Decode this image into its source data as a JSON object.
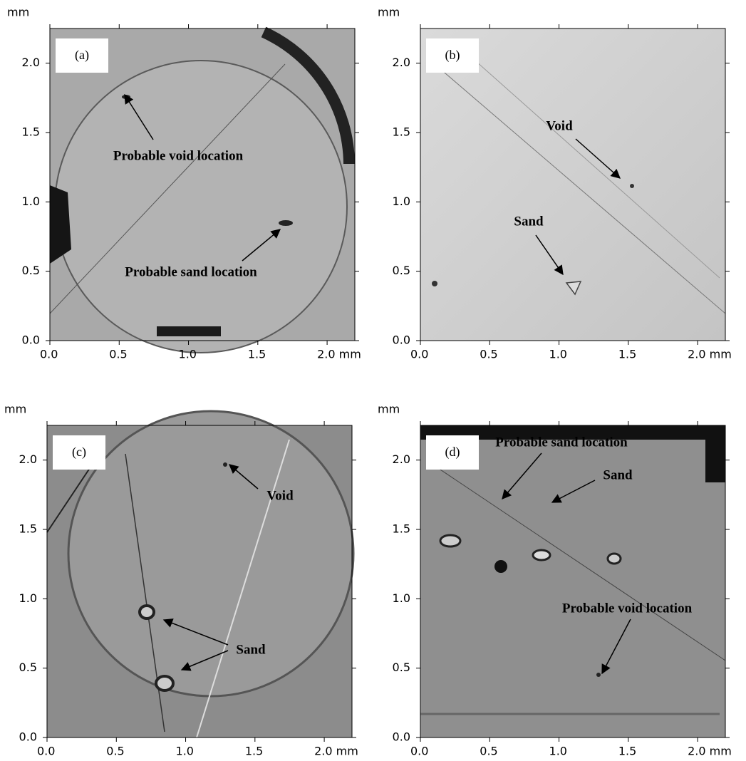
{
  "panels": [
    {
      "label": "(a)",
      "y_unit": "mm",
      "xlim": [
        0,
        2.2
      ],
      "ylim": [
        0,
        2.25
      ],
      "xticks": [
        {
          "value": 0,
          "label": "0.0"
        },
        0.5,
        {
          "value": 1,
          "label": "1.0"
        },
        1.5,
        {
          "value": 2,
          "label": "2.0 mm"
        }
      ],
      "yticks": [
        {
          "value": 0,
          "label": "0.0"
        },
        0.5,
        {
          "value": 1,
          "label": "1.0"
        },
        1.5,
        {
          "value": 2,
          "label": "2.0"
        }
      ],
      "annotations": [
        {
          "text": "Probable void location"
        },
        {
          "text": "Probable sand location"
        }
      ]
    },
    {
      "label": "(b)",
      "y_unit": "mm",
      "xlim": [
        0,
        2.2
      ],
      "ylim": [
        0,
        2.25
      ],
      "xticks": [
        {
          "value": 0,
          "label": "0.0"
        },
        0.5,
        {
          "value": 1,
          "label": "1.0"
        },
        1.5,
        {
          "value": 2,
          "label": "2.0 mm"
        }
      ],
      "yticks": [
        {
          "value": 0,
          "label": "0.0"
        },
        0.5,
        {
          "value": 1,
          "label": "1.0"
        },
        1.5,
        {
          "value": 2,
          "label": "2.0"
        }
      ],
      "annotations": [
        {
          "text": "Void"
        },
        {
          "text": "Sand"
        }
      ]
    },
    {
      "label": "(c)",
      "y_unit": "mm",
      "xlim": [
        0,
        2.2
      ],
      "ylim": [
        0,
        2.25
      ],
      "xticks": [
        {
          "value": 0,
          "label": "0.0"
        },
        0.5,
        {
          "value": 1,
          "label": "1.0"
        },
        1.5,
        {
          "value": 2,
          "label": "2.0 mm"
        }
      ],
      "yticks": [
        {
          "value": 0,
          "label": "0.0"
        },
        0.5,
        {
          "value": 1,
          "label": "1.0"
        },
        1.5,
        {
          "value": 2,
          "label": "2.0"
        }
      ],
      "annotations": [
        {
          "text": "Void"
        },
        {
          "text": "Sand"
        }
      ]
    },
    {
      "label": "(d)",
      "y_unit": "mm",
      "xlim": [
        0,
        2.2
      ],
      "ylim": [
        0,
        2.25
      ],
      "xticks": [
        {
          "value": 0,
          "label": "0.0"
        },
        0.5,
        {
          "value": 1,
          "label": "1.0"
        },
        1.5,
        {
          "value": 2,
          "label": "2.0 mm"
        }
      ],
      "yticks": [
        {
          "value": 0,
          "label": "0.0"
        },
        0.5,
        {
          "value": 1,
          "label": "1.0"
        },
        1.5,
        {
          "value": 2,
          "label": "2.0"
        }
      ],
      "annotations": [
        {
          "text": "Probable sand location"
        },
        {
          "text": "Sand"
        },
        {
          "text": "Probable void location"
        }
      ]
    }
  ]
}
